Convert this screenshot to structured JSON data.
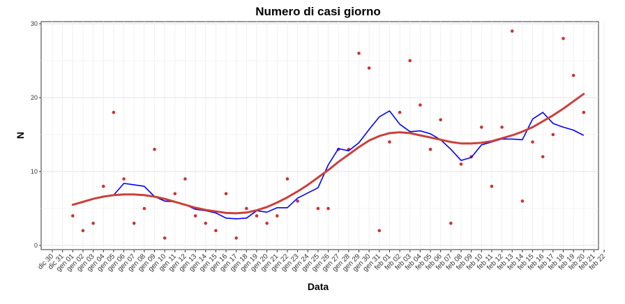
{
  "chart_data": {
    "type": "line",
    "title": "Numero di casi giorno",
    "xlabel": "Data",
    "ylabel": "N",
    "ylim": [
      0,
      30
    ],
    "yticks": [
      0,
      10,
      20,
      30
    ],
    "grid": true,
    "x_tick_labels": [
      "dic 30",
      "dic 31",
      "gen 01",
      "gen 02",
      "gen 03",
      "gen 04",
      "gen 05",
      "gen 06",
      "gen 07",
      "gen 08",
      "gen 09",
      "gen 10",
      "gen 11",
      "gen 12",
      "gen 13",
      "gen 14",
      "gen 15",
      "gen 16",
      "gen 17",
      "gen 18",
      "gen 19",
      "gen 20",
      "gen 21",
      "gen 22",
      "gen 23",
      "gen 24",
      "gen 25",
      "gen 26",
      "gen 27",
      "gen 28",
      "gen 29",
      "gen 30",
      "gen 31",
      "feb 01",
      "feb 02",
      "feb 03",
      "feb 04",
      "feb 05",
      "feb 06",
      "feb 07",
      "feb 08",
      "feb 09",
      "feb 10",
      "feb 11",
      "feb 12",
      "feb 13",
      "feb 14",
      "feb 15",
      "feb 16",
      "feb 17",
      "feb 18",
      "feb 19",
      "feb 20",
      "feb 21",
      "feb 22"
    ],
    "dates": [
      "gen 01",
      "gen 02",
      "gen 03",
      "gen 04",
      "gen 05",
      "gen 06",
      "gen 07",
      "gen 08",
      "gen 09",
      "gen 10",
      "gen 11",
      "gen 12",
      "gen 13",
      "gen 14",
      "gen 15",
      "gen 16",
      "gen 17",
      "gen 18",
      "gen 19",
      "gen 20",
      "gen 21",
      "gen 22",
      "gen 23",
      "gen 24",
      "gen 25",
      "gen 26",
      "gen 27",
      "gen 28",
      "gen 29",
      "gen 30",
      "gen 31",
      "feb 01",
      "feb 02",
      "feb 03",
      "feb 04",
      "feb 05",
      "feb 06",
      "feb 07",
      "feb 08",
      "feb 09",
      "feb 10",
      "feb 11",
      "feb 12",
      "feb 13",
      "feb 14",
      "feb 15",
      "feb 16",
      "feb 17",
      "feb 18",
      "feb 19",
      "feb 20"
    ],
    "series": [
      {
        "kind": "points",
        "color": "#cc3333",
        "values": [
          4,
          2,
          3,
          8,
          18,
          9,
          3,
          5,
          13,
          1,
          7,
          9,
          4,
          3,
          2,
          7,
          1,
          5,
          4,
          3,
          4,
          9,
          6,
          null,
          5,
          5,
          13,
          13,
          26,
          24,
          2,
          14,
          18,
          25,
          19,
          13,
          17,
          3,
          11,
          12,
          16,
          8,
          16,
          29,
          6,
          14,
          12,
          15,
          28,
          23,
          18
        ]
      },
      {
        "kind": "moving-average",
        "color": "#0000ff",
        "values": [
          null,
          null,
          null,
          6.6,
          6.8,
          8.4,
          8.2,
          8.0,
          6.6,
          6.0,
          5.9,
          5.5,
          4.9,
          4.7,
          4.4,
          3.7,
          3.6,
          3.7,
          4.7,
          4.5,
          5.1,
          5.1,
          6.4,
          7.1,
          7.8,
          10.9,
          13.1,
          12.8,
          13.9,
          15.7,
          17.4,
          18.2,
          16.4,
          15.4,
          15.5,
          15.1,
          14.3,
          13.0,
          11.5,
          11.9,
          13.6,
          14.0,
          14.4,
          14.4,
          14.3,
          17.1,
          18.0,
          16.5,
          16.0,
          15.6,
          14.9
        ]
      },
      {
        "kind": "smooth",
        "color": "#c9413a",
        "values": [
          5.5,
          5.9,
          6.3,
          6.6,
          6.8,
          6.9,
          6.9,
          6.8,
          6.6,
          6.3,
          5.9,
          5.5,
          5.1,
          4.8,
          4.6,
          4.4,
          4.35,
          4.45,
          4.75,
          5.2,
          5.8,
          6.5,
          7.3,
          8.2,
          9.2,
          10.2,
          11.3,
          12.3,
          13.3,
          14.2,
          14.8,
          15.2,
          15.3,
          15.2,
          14.9,
          14.6,
          14.3,
          14.0,
          13.8,
          13.8,
          13.9,
          14.1,
          14.5,
          14.9,
          15.4,
          16.0,
          16.8,
          17.6,
          18.5,
          19.5,
          20.5
        ]
      }
    ]
  }
}
